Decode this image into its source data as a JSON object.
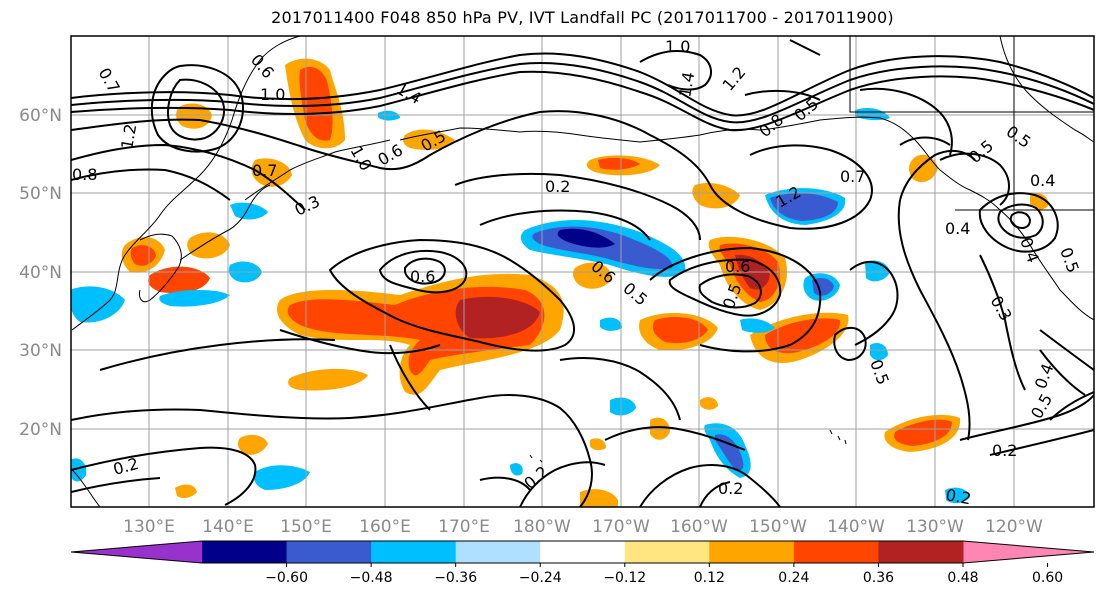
{
  "title": "2017011400 F048 850 hPa PV, IVT Landfall PC (2017011700 - 2017011900)",
  "lat_labels": [
    "60°N",
    "50°N",
    "40°N",
    "30°N",
    "20°N"
  ],
  "lon_labels": [
    "130°E",
    "140°E",
    "150°E",
    "160°E",
    "170°E",
    "180°W",
    "170°W",
    "160°W",
    "150°W",
    "140°W",
    "130°W",
    "120°W"
  ],
  "contour_labels": [
    "0.7",
    "0.6",
    "1.0",
    "1.4",
    "1.2",
    "1.0",
    "0.8",
    "0.7",
    "0.3",
    "0.6",
    "0.5",
    "0.2",
    "0.6",
    "0.6",
    "0.5",
    "0.6",
    "0.5",
    "0.2",
    "0.2",
    "0.2",
    "0.5",
    "0.4",
    "0.5",
    "0.4",
    "0.5",
    "0.2",
    "0.7",
    "1.2",
    "1.0",
    "1.4",
    "1.2",
    "0.8",
    "0.5",
    "0.3",
    "0.4",
    "0.5",
    "0.2",
    "0.4",
    "0.5"
  ],
  "colorbar": {
    "ticks": [
      "−0.60",
      "−0.48",
      "−0.36",
      "−0.24",
      "−0.12",
      "0.12",
      "0.24",
      "0.36",
      "0.48",
      "0.60"
    ],
    "bins": [
      {
        "color": "#9932cc"
      },
      {
        "color": "#00008b"
      },
      {
        "color": "#3a5bd0"
      },
      {
        "color": "#00bfff"
      },
      {
        "color": "#b0e0ff"
      },
      {
        "color": "#ffffff"
      },
      {
        "color": "#ffe680"
      },
      {
        "color": "#ffa500"
      },
      {
        "color": "#ff4500"
      },
      {
        "color": "#b22222"
      },
      {
        "color": "#ff85b3"
      }
    ]
  },
  "colors": {
    "neg_light": "#00bfff",
    "neg_mid": "#3a5bd0",
    "neg_dark": "#00008b",
    "pos_light": "#ffe680",
    "pos_mid": "#ffa500",
    "pos_high": "#ff4500",
    "pos_max": "#b22222"
  }
}
